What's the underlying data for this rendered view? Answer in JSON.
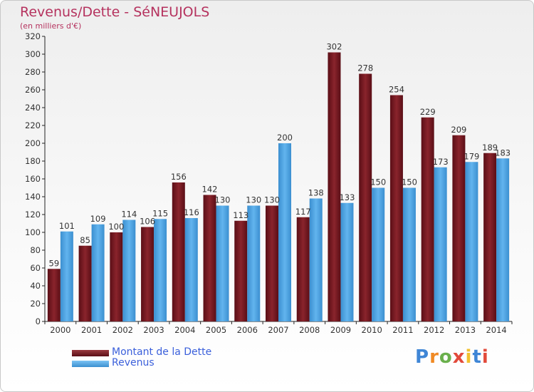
{
  "title": "Revenus/Dette - SéNEUJOLS",
  "subtitle": "(en milliers d'€)",
  "legend": {
    "dette": "Montant de la Dette",
    "revenus": "Revenus"
  },
  "logo": {
    "letters": [
      "P",
      "r",
      "o",
      "x",
      "i",
      "t",
      "i"
    ],
    "colors": [
      "#3f86d6",
      "#f08a24",
      "#6ab04c",
      "#e24a3b",
      "#f2c12e",
      "#3f86d6",
      "#e24a3b"
    ]
  },
  "colors": {
    "dette": "#7a1a22",
    "revenus": "#4fa7e6"
  },
  "chart_data": {
    "type": "bar",
    "title": "Revenus/Dette - SéNEUJOLS",
    "ylabel": "(en milliers d'€)",
    "ylim": [
      0,
      320
    ],
    "ytick_step": 20,
    "grid": false,
    "legend_position": "bottom-left",
    "categories": [
      "2000",
      "2001",
      "2002",
      "2003",
      "2004",
      "2005",
      "2006",
      "2007",
      "2008",
      "2009",
      "2010",
      "2011",
      "2012",
      "2013",
      "2014"
    ],
    "series": [
      {
        "name": "Montant de la Dette",
        "values": [
          59,
          85,
          100,
          106,
          156,
          142,
          113,
          130,
          117,
          302,
          278,
          254,
          229,
          209,
          189
        ]
      },
      {
        "name": "Revenus",
        "values": [
          101,
          109,
          114,
          115,
          116,
          130,
          130,
          200,
          138,
          133,
          150,
          150,
          173,
          179,
          183
        ]
      }
    ]
  }
}
